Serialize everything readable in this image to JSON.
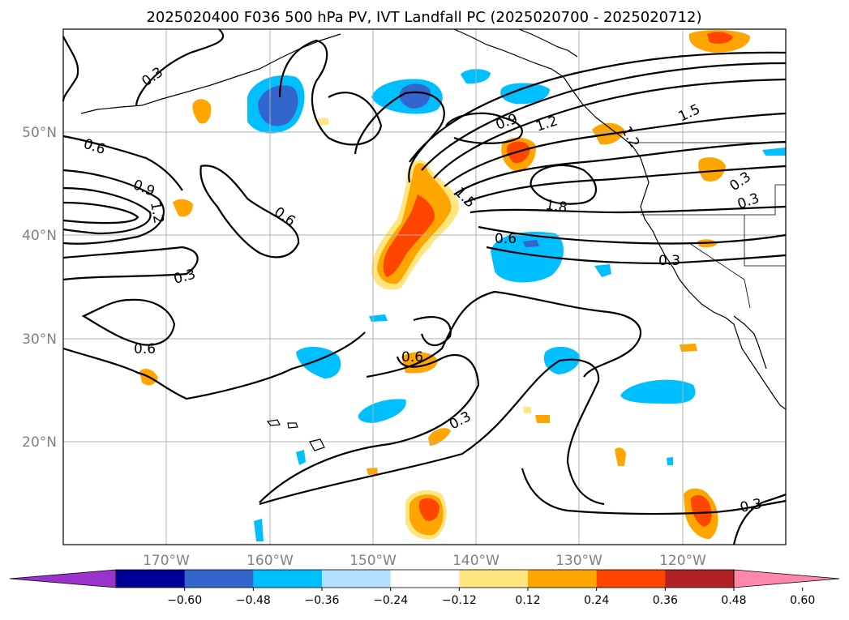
{
  "title": "2025020400 F036 500 hPa PV, IVT Landfall PC (2025020700 - 2025020712)",
  "longitude_labels": [
    "170°W",
    "160°W",
    "150°W",
    "140°W",
    "130°W",
    "120°W"
  ],
  "latitude_labels": [
    "50°N",
    "40°N",
    "30°N",
    "20°N"
  ],
  "colorbar": {
    "tick_labels": [
      "−0.60",
      "−0.48",
      "−0.36",
      "−0.24",
      "−0.12",
      "0.12",
      "0.24",
      "0.36",
      "0.48",
      "0.60"
    ],
    "colors": [
      "#9933cc",
      "#000099",
      "#3366cc",
      "#00bfff",
      "#b3e0ff",
      "#ffffff",
      "#ffe680",
      "#ffa500",
      "#ff4500",
      "#b22222",
      "#ff88aa"
    ]
  },
  "contour_labels": [
    "0.3",
    "0.6",
    "0.9",
    "1.2",
    "0.6",
    "0.3",
    "0.6",
    "0.6",
    "0.3",
    "0.9",
    "1.2",
    "1.5",
    "1.8",
    "0.6",
    "0.3",
    "1.5",
    "0.3",
    "0.3",
    "0.3",
    "1.2"
  ],
  "colors": {
    "contour": "#000000",
    "grid": "#b0b0b0",
    "axis_text": "#808080"
  }
}
